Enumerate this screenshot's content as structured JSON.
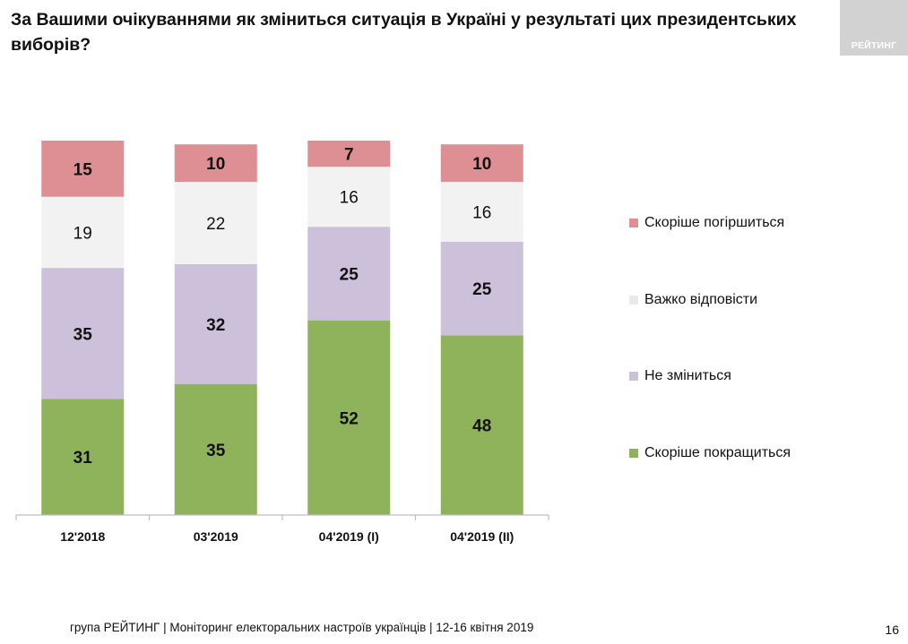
{
  "header": {
    "title": "За Вашими очікуваннями як зміниться ситуація в Україні у результаті цих президентських виборів?",
    "logo_text": "РЕЙТИНГ"
  },
  "chart_data": {
    "type": "bar",
    "stacked": true,
    "orientation": "vertical",
    "categories": [
      "12'2018",
      "03'2019",
      "04'2019 (I)",
      "04'2019 (II)"
    ],
    "series": [
      {
        "name": "Скоріше покращиться",
        "color": "#8fb35a",
        "values": [
          31,
          35,
          52,
          48
        ]
      },
      {
        "name": "Не зміниться",
        "color": "#ccc0da",
        "values": [
          35,
          32,
          25,
          25
        ]
      },
      {
        "name": "Важко відповісти",
        "color": "#f2f2f2",
        "values": [
          19,
          22,
          16,
          16
        ]
      },
      {
        "name": "Скоріше погіршиться",
        "color": "#de8f93",
        "values": [
          15,
          10,
          7,
          10
        ]
      }
    ],
    "ylim": [
      0,
      100
    ],
    "legend": {
      "position": "right",
      "order": [
        "Скоріше погіршиться",
        "Важко відповісти",
        "Не зміниться",
        "Скоріше покращиться"
      ]
    },
    "grid": false
  },
  "footer": {
    "text": "група РЕЙТИНГ | Моніторинг електоральних настроїв українців  |  12-16 квітня  2019",
    "page_number": "16"
  }
}
